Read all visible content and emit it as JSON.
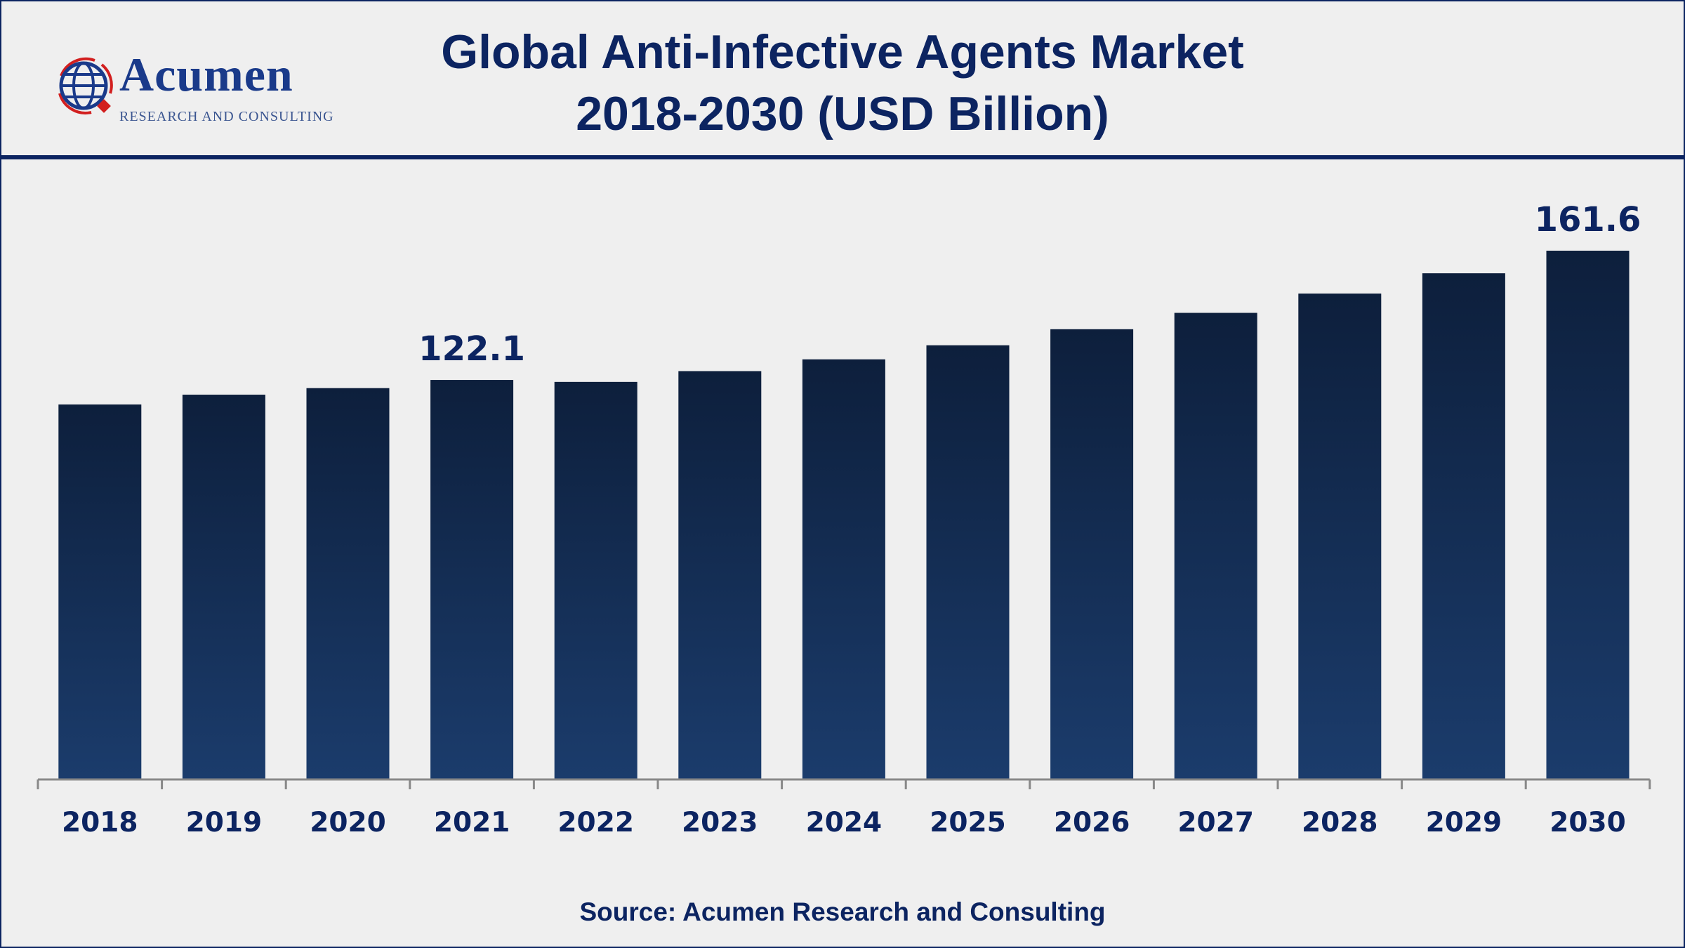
{
  "header": {
    "title_line1": "Global Anti-Infective Agents Market",
    "title_line2": "2018-2030 (USD Billion)"
  },
  "logo": {
    "name": "Acumen",
    "tagline": "RESEARCH AND CONSULTING"
  },
  "source": "Source: Acumen Research and Consulting",
  "colors": {
    "primary": "#0c2461",
    "bar_top": "#0d1f3c",
    "bar_bottom": "#1b3c6c"
  },
  "chart_data": {
    "type": "bar",
    "title": "Global Anti-Infective Agents Market 2018-2030 (USD Billion)",
    "xlabel": "",
    "ylabel": "USD Billion",
    "categories": [
      "2018",
      "2019",
      "2020",
      "2021",
      "2022",
      "2023",
      "2024",
      "2025",
      "2026",
      "2027",
      "2028",
      "2029",
      "2030"
    ],
    "values": [
      114.6,
      117.6,
      119.6,
      122.1,
      121.5,
      124.8,
      128.4,
      132.7,
      137.6,
      142.6,
      148.5,
      154.7,
      161.6
    ],
    "data_labels": {
      "2021": "122.1",
      "2030": "161.6"
    },
    "ylim": [
      0,
      175
    ],
    "grid": false
  }
}
